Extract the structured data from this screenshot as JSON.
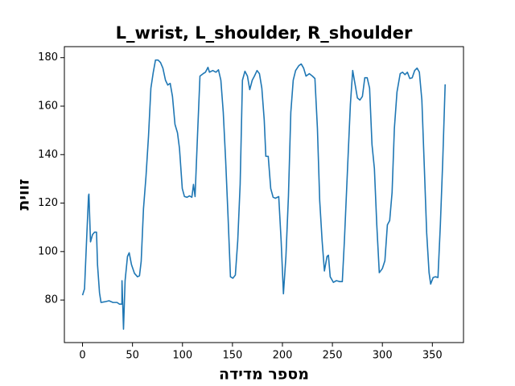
{
  "chart_data": {
    "type": "line",
    "title": "L_wrist, L_shoulder, R_shoulder",
    "xlabel": "מספר מדידה",
    "ylabel": "זווית",
    "x": [
      0,
      2,
      4,
      6,
      6.4,
      8,
      10,
      12,
      14,
      15,
      17,
      18.5,
      22.5,
      26.5,
      30.5,
      34.6,
      37,
      39.4,
      39.5,
      41,
      42.6,
      45,
      46.7,
      49,
      52,
      55,
      57,
      58.7,
      61,
      63.5,
      66,
      68.4,
      70.8,
      73,
      75.6,
      78,
      80.4,
      83,
      85.3,
      87.7,
      90,
      92.5,
      95,
      97,
      99.8,
      102,
      104.6,
      107,
      109.4,
      111,
      112.6,
      115,
      117.5,
      120.7,
      123,
      125.5,
      127,
      130.3,
      133.5,
      136,
      138.4,
      140.8,
      143.2,
      145.6,
      148,
      150.4,
      152.9,
      155.3,
      157.7,
      160,
      162.5,
      165,
      167.3,
      169.8,
      172,
      174.6,
      177,
      179.4,
      181.8,
      183.4,
      185.8,
      188.3,
      190.7,
      193,
      196.3,
      198.7,
      201,
      203.5,
      206,
      208.4,
      210.8,
      213.2,
      216.4,
      218.8,
      221.2,
      223.6,
      226.9,
      230,
      232.5,
      235,
      237.3,
      239.7,
      242,
      244.6,
      246,
      247.8,
      251,
      254,
      257.4,
      259.9,
      262,
      265.5,
      268,
      270.3,
      272.7,
      275,
      277.5,
      280,
      282.4,
      284.8,
      287.2,
      289.6,
      292,
      294.4,
      296.9,
      300,
      302.5,
      305,
      307.3,
      309.7,
      312,
      314.6,
      317.8,
      320.2,
      322.6,
      325,
      327.4,
      329.8,
      332.3,
      334.7,
      337,
      339.5,
      342,
      344.3,
      346.7,
      348.3,
      350.8,
      353,
      355.6,
      358,
      360.4,
      362.8
    ],
    "series": [
      {
        "color": "#1f77b4",
        "values": [
          82,
          84.6,
          104,
          123,
          123.7,
          104,
          107,
          108,
          108,
          94.6,
          83,
          79,
          79.3,
          79.7,
          79,
          79,
          78.3,
          78.3,
          88,
          68,
          88,
          98,
          99.5,
          94.6,
          91,
          89.6,
          90,
          96,
          117.7,
          131,
          147.5,
          167.4,
          174,
          179,
          179,
          178,
          175.7,
          170.7,
          168.7,
          169.4,
          164,
          152.5,
          149,
          142.6,
          126,
          122.7,
          122.4,
          123,
          122.4,
          127.7,
          122.7,
          147.5,
          172.4,
          173.4,
          174,
          176,
          174,
          174.7,
          174,
          175,
          170.7,
          157.5,
          137.6,
          114.4,
          89.6,
          89,
          90.3,
          104.5,
          127.7,
          170.7,
          174.4,
          172.4,
          166.8,
          170.7,
          172.4,
          174.7,
          173.4,
          167.4,
          154.2,
          139.3,
          139.3,
          126,
          122.4,
          122,
          122.7,
          104.5,
          82.6,
          98,
          122.7,
          157.5,
          170.7,
          174.7,
          176.7,
          177.4,
          175.7,
          172.4,
          173.4,
          172.4,
          171.4,
          150.9,
          121,
          104.5,
          92,
          98,
          98.5,
          89.6,
          87.3,
          88,
          87.6,
          87.6,
          104.5,
          137.6,
          160.8,
          174.7,
          169,
          163.4,
          162.5,
          164,
          171.7,
          171.7,
          167.4,
          144.2,
          134.3,
          111,
          91.3,
          93,
          96.2,
          111,
          112.8,
          124.4,
          150.9,
          165.8,
          173.4,
          174,
          173,
          174,
          171.4,
          171.7,
          174.7,
          175.7,
          174,
          162.5,
          134.3,
          107.8,
          91.3,
          86.6,
          89.3,
          89.6,
          89.3,
          111,
          137.6,
          169
        ]
      }
    ],
    "xlim": [
      -18.15,
      381.15
    ],
    "xticks": [
      0,
      50,
      100,
      150,
      200,
      250,
      300,
      350
    ],
    "ylim": [
      62.45,
      184.55
    ],
    "yticks": [
      80,
      100,
      120,
      140,
      160,
      180
    ]
  }
}
